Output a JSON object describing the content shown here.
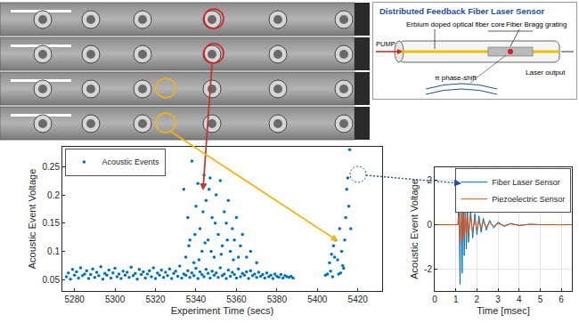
{
  "chart_data": [
    {
      "type": "scatter",
      "xlabel": "Experiment Time (secs)",
      "ylabel": "Acoustic Event Voltage",
      "xlim": [
        5274,
        5432
      ],
      "xticks": [
        5280,
        5300,
        5320,
        5340,
        5360,
        5380,
        5400,
        5420
      ],
      "ylim": [
        0.03,
        0.285
      ],
      "yticks": [
        0.05,
        0.1,
        0.15,
        0.2,
        0.25
      ],
      "grid": false,
      "legend": "top-left",
      "marker": "dot",
      "series": [
        {
          "name": "Acoustic Events",
          "color": "#0072bd",
          "x": [
            5276,
            5277,
            5278,
            5279,
            5280,
            5281,
            5282,
            5283,
            5284,
            5285,
            5286,
            5287,
            5288,
            5289,
            5290,
            5291,
            5292,
            5293,
            5294,
            5295,
            5296,
            5297,
            5298,
            5299,
            5300,
            5301,
            5302,
            5303,
            5304,
            5305,
            5306,
            5307,
            5308,
            5309,
            5310,
            5311,
            5312,
            5313,
            5314,
            5315,
            5316,
            5317,
            5318,
            5319,
            5320,
            5321,
            5322,
            5323,
            5324,
            5325,
            5326,
            5327,
            5328,
            5329,
            5330,
            5331,
            5332,
            5333,
            5334,
            5335,
            5336,
            5337,
            5338,
            5339,
            5340,
            5341,
            5342,
            5343,
            5344,
            5345,
            5346,
            5347,
            5348,
            5349,
            5350,
            5351,
            5352,
            5353,
            5354,
            5355,
            5356,
            5357,
            5358,
            5359,
            5360,
            5361,
            5362,
            5363,
            5364,
            5365,
            5366,
            5367,
            5368,
            5369,
            5370,
            5371,
            5372,
            5373,
            5374,
            5375,
            5376,
            5377,
            5378,
            5379,
            5380,
            5381,
            5382,
            5383,
            5384,
            5385,
            5386,
            5387,
            5388,
            5334,
            5335,
            5336,
            5337,
            5338,
            5339,
            5340,
            5341,
            5342,
            5343,
            5344,
            5345,
            5346,
            5347,
            5348,
            5349,
            5350,
            5351,
            5352,
            5353,
            5354,
            5355,
            5356,
            5357,
            5358,
            5359,
            5360,
            5361,
            5362,
            5363,
            5365,
            5367,
            5370,
            5336.5,
            5341.5,
            5343.5,
            5346.5,
            5349.5,
            5352.5,
            5355.5,
            5358.5,
            5347.5,
            5339.5,
            5344.5,
            5404,
            5405,
            5406,
            5407,
            5408,
            5409,
            5410,
            5411,
            5412,
            5413,
            5414,
            5415,
            5416,
            5414.5,
            5415.5,
            5413.5,
            5412.5,
            5416.5,
            5406.5,
            5408.5,
            5410.5,
            5407.5,
            5411.5
          ],
          "values": [
            0.055,
            0.062,
            0.051,
            0.068,
            0.058,
            0.064,
            0.053,
            0.071,
            0.057,
            0.06,
            0.066,
            0.052,
            0.059,
            0.069,
            0.054,
            0.063,
            0.057,
            0.073,
            0.051,
            0.061,
            0.058,
            0.067,
            0.053,
            0.062,
            0.07,
            0.055,
            0.06,
            0.052,
            0.065,
            0.058,
            0.063,
            0.054,
            0.072,
            0.057,
            0.061,
            0.051,
            0.068,
            0.059,
            0.064,
            0.053,
            0.06,
            0.066,
            0.055,
            0.071,
            0.052,
            0.062,
            0.058,
            0.067,
            0.054,
            0.063,
            0.057,
            0.069,
            0.052,
            0.061,
            0.065,
            0.056,
            0.074,
            0.053,
            0.06,
            0.058,
            0.066,
            0.054,
            0.062,
            0.057,
            0.07,
            0.052,
            0.064,
            0.059,
            0.055,
            0.068,
            0.061,
            0.053,
            0.065,
            0.058,
            0.062,
            0.054,
            0.071,
            0.057,
            0.06,
            0.052,
            0.067,
            0.056,
            0.063,
            0.059,
            0.053,
            0.069,
            0.055,
            0.061,
            0.058,
            0.064,
            0.052,
            0.066,
            0.057,
            0.06,
            0.054,
            0.063,
            0.056,
            0.059,
            0.053,
            0.062,
            0.055,
            0.058,
            0.052,
            0.06,
            0.056,
            0.054,
            0.059,
            0.053,
            0.057,
            0.055,
            0.054,
            0.056,
            0.053,
            0.21,
            0.09,
            0.16,
            0.12,
            0.26,
            0.08,
            0.18,
            0.22,
            0.14,
            0.1,
            0.235,
            0.19,
            0.12,
            0.23,
            0.16,
            0.09,
            0.2,
            0.13,
            0.225,
            0.11,
            0.17,
            0.15,
            0.19,
            0.1,
            0.14,
            0.12,
            0.16,
            0.09,
            0.11,
            0.13,
            0.09,
            0.1,
            0.08,
            0.11,
            0.085,
            0.17,
            0.21,
            0.15,
            0.095,
            0.12,
            0.085,
            0.1,
            0.13,
            0.115,
            0.058,
            0.06,
            0.08,
            0.095,
            0.11,
            0.12,
            0.085,
            0.14,
            0.1,
            0.07,
            0.16,
            0.23,
            0.28,
            0.21,
            0.18,
            0.12,
            0.075,
            0.14,
            0.065,
            0.09,
            0.06,
            0.055,
            0.062
          ]
        }
      ]
    },
    {
      "type": "line",
      "xlabel": "Time [msec]",
      "ylabel": "Acoustic Event Voltage",
      "xlim": [
        0,
        6.5
      ],
      "xticks": [
        0,
        1,
        2,
        3,
        4,
        5,
        6
      ],
      "ylim": [
        -3,
        2.6
      ],
      "yticks": [
        -2,
        0,
        2
      ],
      "grid": true,
      "legend": "top-right",
      "series": [
        {
          "name": "Fiber Laser Sensor",
          "color": "#0072bd",
          "x": [
            0,
            1.1,
            1.15,
            1.2,
            1.25,
            1.3,
            1.35,
            1.4,
            1.45,
            1.5,
            1.55,
            1.6,
            1.7,
            1.8,
            1.9,
            2.0,
            2.1,
            2.2,
            2.3,
            2.45,
            2.6,
            2.8,
            3.0,
            3.3,
            3.6,
            4.0,
            4.5,
            5.0,
            6.5
          ],
          "values": [
            0,
            0,
            1.2,
            -2.7,
            2.0,
            -2.2,
            1.6,
            -1.4,
            1.2,
            -1.1,
            0.9,
            -0.8,
            0.7,
            -0.6,
            0.5,
            -0.45,
            0.4,
            -0.35,
            0.3,
            -0.25,
            0.2,
            -0.15,
            0.12,
            -0.08,
            0.06,
            -0.04,
            0.02,
            0,
            0
          ]
        },
        {
          "name": "Piezoelectric Sensor",
          "color": "#d95319",
          "x": [
            0,
            1.1,
            1.15,
            1.2,
            1.25,
            1.3,
            1.35,
            1.4,
            1.45,
            1.5,
            1.55,
            1.6,
            1.7,
            1.8,
            1.9,
            2.0,
            2.1,
            2.2,
            2.3,
            2.45,
            2.6,
            2.8,
            3.0,
            3.3,
            3.6,
            4.0,
            4.5,
            5.0,
            6.5
          ],
          "values": [
            0,
            0,
            0.4,
            -0.9,
            0.8,
            -0.7,
            0.65,
            -0.6,
            0.55,
            -0.5,
            0.45,
            -0.4,
            0.35,
            -0.3,
            0.28,
            -0.25,
            0.2,
            -0.18,
            0.15,
            -0.12,
            0.1,
            -0.08,
            0.06,
            -0.05,
            0.04,
            -0.03,
            0.02,
            0,
            0
          ]
        }
      ]
    }
  ],
  "diagram": {
    "title": "Distributed Feedback Fiber Laser Sensor",
    "core_label": "Erbium doped optical fiber core",
    "grating_label": "Fiber Bragg grating",
    "pump_label": "PUMP",
    "phase_label": "π phase-shift",
    "output_label": "Laser output"
  }
}
